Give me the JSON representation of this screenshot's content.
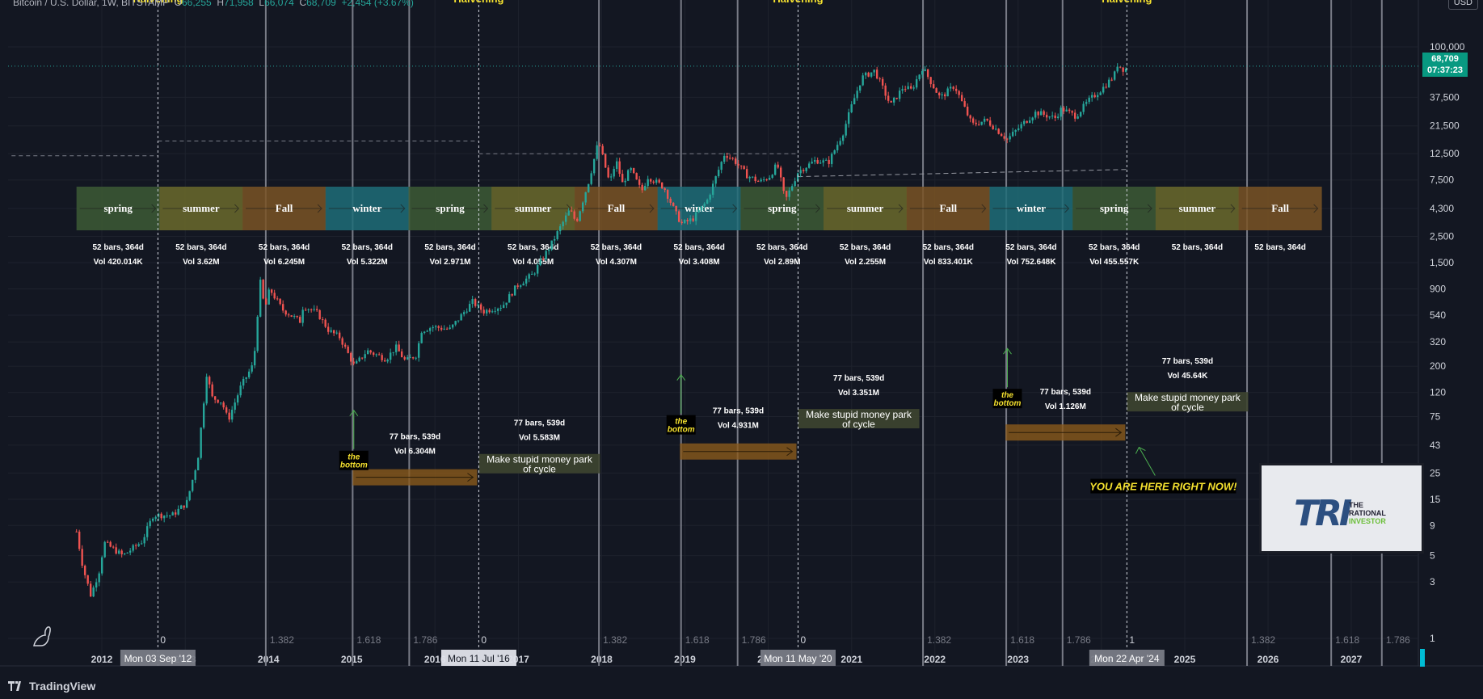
{
  "header": {
    "symbol": "Bitcoin / U.S. Dollar, 1W, BITSTAMP",
    "label_o": "O",
    "value_o": "66,255",
    "label_h": "H",
    "value_h": "71,958",
    "label_l": "L",
    "value_l": "66,074",
    "label_c": "C",
    "value_c": "68,709",
    "change": "+2,454 (+3.67%)"
  },
  "currency_button": "USD",
  "last_price": {
    "price": "68,709",
    "countdown": "07:37:23"
  },
  "footer": {
    "brand": "TradingView"
  },
  "watermark": {
    "mark": "TRI",
    "line1": "THE",
    "line2": "RATIONAL",
    "line3": "INVESTOR"
  },
  "colors": {
    "background": "#131722",
    "up": "#26a69a",
    "down": "#ef5350",
    "spring": "#3d5b35",
    "summer": "#6b6a2c",
    "fall": "#7a5424",
    "winter": "#1f6d78",
    "accumulation": "#8a5a1c",
    "money": "#3e4530",
    "annotation_yellow": "#f5e12f",
    "arrow_green": "#4caf50"
  },
  "chart_data": {
    "type": "candlestick",
    "title": "",
    "y_scale": "log",
    "y_axis_ticks": [
      "100,000",
      "37,500",
      "21,500",
      "12,500",
      "7,500",
      "4,300",
      "2,500",
      "1,500",
      "900",
      "540",
      "320",
      "200",
      "120",
      "75",
      "43",
      "25",
      "15",
      "9",
      "5",
      "3",
      "1"
    ],
    "x_axis_ticks": [
      "2012",
      "2013",
      "2014",
      "2015",
      "2016",
      "2017",
      "2018",
      "2019",
      "2020",
      "2021",
      "2022",
      "2023",
      "2024",
      "2025",
      "2026",
      "2027"
    ],
    "vertical_line_markers": [
      {
        "label": "Mon 03 Sep '12",
        "sublabel": "0",
        "caption": "Halvening",
        "dashed": true,
        "date": "2012-09-03"
      },
      {
        "label": "Mon 11 Jul '16",
        "sublabel": "0",
        "caption": "Halvening",
        "dashed": true,
        "date": "2016-07-11"
      },
      {
        "label": "Mon 11 May '20",
        "sublabel": "0",
        "caption": "Halvening",
        "dashed": true,
        "date": "2020-05-11"
      },
      {
        "label": "Mon 22 Apr '24",
        "sublabel": "1",
        "caption": "Halvening",
        "dashed": true,
        "date": "2024-04-22"
      }
    ],
    "fib_time_lines": [
      {
        "label": "1.382",
        "date": "2013-12-20"
      },
      {
        "label": "1.618",
        "date": "2015-01-05"
      },
      {
        "label": "1.786",
        "date": "2015-09-10"
      },
      {
        "label": "1.382",
        "date": "2017-12-20"
      },
      {
        "label": "1.618",
        "date": "2018-12-15"
      },
      {
        "label": "1.786",
        "date": "2019-08-20"
      },
      {
        "label": "1.382",
        "date": "2021-11-10"
      },
      {
        "label": "1.618",
        "date": "2022-11-10"
      },
      {
        "label": "1.786",
        "date": "2023-07-15"
      },
      {
        "label": "1.382",
        "date": "2025-10-01"
      },
      {
        "label": "1.618",
        "date": "2026-10-05"
      },
      {
        "label": "1.786",
        "date": "2027-05-15"
      }
    ],
    "seasons": [
      {
        "name": "spring",
        "stats": "52 bars, 364d",
        "vol": "Vol 420.014K",
        "start": "2011-09-12"
      },
      {
        "name": "summer",
        "stats": "52 bars, 364d",
        "vol": "Vol 3.62M",
        "start": "2012-09-10"
      },
      {
        "name": "Fall",
        "stats": "52 bars, 364d",
        "vol": "Vol 6.245M",
        "start": "2013-09-09"
      },
      {
        "name": "winter",
        "stats": "52 bars, 364d",
        "vol": "Vol 5.322M",
        "start": "2014-09-08"
      },
      {
        "name": "spring",
        "stats": "52 bars, 364d",
        "vol": "Vol 2.971M",
        "start": "2015-09-07"
      },
      {
        "name": "summer",
        "stats": "52 bars, 364d",
        "vol": "Vol 4.055M",
        "start": "2016-09-05"
      },
      {
        "name": "Fall",
        "stats": "52 bars, 364d",
        "vol": "Vol 4.307M",
        "start": "2017-09-04"
      },
      {
        "name": "winter",
        "stats": "52 bars, 364d",
        "vol": "Vol 3.408M",
        "start": "2018-09-03"
      },
      {
        "name": "spring",
        "stats": "52 bars, 364d",
        "vol": "Vol 2.89M",
        "start": "2019-09-02"
      },
      {
        "name": "summer",
        "stats": "52 bars, 364d",
        "vol": "Vol 2.255M",
        "start": "2020-08-31"
      },
      {
        "name": "Fall",
        "stats": "52 bars, 364d",
        "vol": "Vol 833.401K",
        "start": "2021-08-30"
      },
      {
        "name": "winter",
        "stats": "52 bars, 364d",
        "vol": "Vol 752.648K",
        "start": "2022-08-29"
      },
      {
        "name": "spring",
        "stats": "52 bars, 364d",
        "vol": "Vol 455.557K",
        "start": "2023-08-28"
      },
      {
        "name": "summer",
        "stats": "52 bars, 364d",
        "vol": "",
        "start": "2024-08-26"
      },
      {
        "name": "Fall",
        "stats": "52 bars, 364d",
        "vol": "",
        "start": "2025-08-25"
      }
    ],
    "cycle_boxes": [
      {
        "kind": "accumulation",
        "start": "2015-01-05",
        "end": "2016-07-04",
        "price": 23,
        "stats": "77 bars, 539d",
        "vol": "Vol 6.304M"
      },
      {
        "kind": "money",
        "label": "Make stupid money park of cycle",
        "start": "2016-07-11",
        "end": "2017-12-25",
        "price": 30,
        "stats": "77 bars, 539d",
        "vol": "Vol 5.583M"
      },
      {
        "kind": "accumulation",
        "start": "2018-12-10",
        "end": "2020-05-04",
        "price": 38,
        "stats": "77 bars, 539d",
        "vol": "Vol 4.931M"
      },
      {
        "kind": "money",
        "label": "Make stupid money park of cycle",
        "start": "2020-05-11",
        "end": "2021-10-25",
        "price": 72,
        "stats": "77 bars, 539d",
        "vol": "Vol 3.351M"
      },
      {
        "kind": "accumulation",
        "start": "2022-11-07",
        "end": "2024-04-15",
        "price": 55,
        "stats": "77 bars, 539d",
        "vol": "Vol 1.126M"
      },
      {
        "kind": "money",
        "label": "Make stupid money park of cycle",
        "start": "2024-04-22",
        "end": "2025-10-06",
        "price": 100,
        "stats": "77 bars, 539d",
        "vol": "Vol 45.64K"
      }
    ],
    "bottom_labels": [
      {
        "text": "the bottom",
        "date": "2015-01-10",
        "price": 30
      },
      {
        "text": "the bottom",
        "date": "2018-12-15",
        "price": 60
      },
      {
        "text": "the bottom",
        "date": "2022-11-15",
        "price": 100
      }
    ],
    "callout": {
      "text": "YOU ARE HERE RIGHT NOW!",
      "date": "2024-04-22",
      "price": 20
    },
    "price_path": [
      [
        "2011-09-12",
        8
      ],
      [
        "2011-10-10",
        4
      ],
      [
        "2011-11-14",
        2.3
      ],
      [
        "2011-12-26",
        4
      ],
      [
        "2012-01-09",
        6.5
      ],
      [
        "2012-04-02",
        5
      ],
      [
        "2012-06-25",
        6.6
      ],
      [
        "2012-08-13",
        11
      ],
      [
        "2012-11-05",
        11
      ],
      [
        "2013-01-07",
        14
      ],
      [
        "2013-02-25",
        33
      ],
      [
        "2013-04-08",
        200
      ],
      [
        "2013-04-22",
        110
      ],
      [
        "2013-06-10",
        100
      ],
      [
        "2013-07-08",
        70
      ],
      [
        "2013-09-02",
        135
      ],
      [
        "2013-10-28",
        210
      ],
      [
        "2013-11-25",
        1050
      ],
      [
        "2013-12-16",
        600
      ],
      [
        "2014-01-06",
        900
      ],
      [
        "2014-03-03",
        600
      ],
      [
        "2014-05-19",
        480
      ],
      [
        "2014-06-02",
        650
      ],
      [
        "2014-08-04",
        560
      ],
      [
        "2014-09-22",
        400
      ],
      [
        "2014-11-10",
        350
      ],
      [
        "2015-01-12",
        200
      ],
      [
        "2015-03-09",
        270
      ],
      [
        "2015-06-01",
        230
      ],
      [
        "2015-07-13",
        290
      ],
      [
        "2015-08-24",
        220
      ],
      [
        "2015-10-12",
        250
      ],
      [
        "2015-11-02",
        400
      ],
      [
        "2015-12-21",
        430
      ],
      [
        "2016-03-07",
        410
      ],
      [
        "2016-06-13",
        700
      ],
      [
        "2016-08-01",
        580
      ],
      [
        "2016-10-24",
        650
      ],
      [
        "2016-12-26",
        960
      ],
      [
        "2017-03-06",
        1200
      ],
      [
        "2017-05-22",
        2100
      ],
      [
        "2017-08-14",
        4200
      ],
      [
        "2017-09-11",
        3300
      ],
      [
        "2017-11-06",
        7400
      ],
      [
        "2017-12-18",
        16000
      ],
      [
        "2018-02-05",
        7000
      ],
      [
        "2018-03-05",
        11000
      ],
      [
        "2018-04-02",
        7000
      ],
      [
        "2018-05-07",
        9300
      ],
      [
        "2018-06-25",
        6000
      ],
      [
        "2018-07-23",
        8000
      ],
      [
        "2018-10-01",
        6500
      ],
      [
        "2018-11-19",
        4000
      ],
      [
        "2018-12-17",
        3200
      ],
      [
        "2019-02-04",
        3500
      ],
      [
        "2019-04-08",
        5000
      ],
      [
        "2019-06-24",
        12500
      ],
      [
        "2019-08-05",
        11000
      ],
      [
        "2019-09-30",
        8200
      ],
      [
        "2019-11-25",
        7200
      ],
      [
        "2020-01-06",
        8000
      ],
      [
        "2020-02-10",
        10200
      ],
      [
        "2020-03-16",
        5000
      ],
      [
        "2020-05-11",
        8800
      ],
      [
        "2020-07-27",
        11000
      ],
      [
        "2020-09-21",
        10500
      ],
      [
        "2020-11-23",
        18500
      ],
      [
        "2021-01-04",
        33000
      ],
      [
        "2021-02-15",
        55000
      ],
      [
        "2021-04-12",
        63000
      ],
      [
        "2021-06-21",
        32000
      ],
      [
        "2021-08-16",
        46000
      ],
      [
        "2021-09-20",
        43000
      ],
      [
        "2021-11-08",
        67000
      ],
      [
        "2022-01-24",
        37000
      ],
      [
        "2022-03-28",
        47000
      ],
      [
        "2022-06-13",
        22000
      ],
      [
        "2022-08-15",
        24000
      ],
      [
        "2022-11-14",
        16500
      ],
      [
        "2023-01-23",
        22500
      ],
      [
        "2023-03-20",
        28000
      ],
      [
        "2023-06-12",
        25000
      ],
      [
        "2023-07-10",
        30000
      ],
      [
        "2023-09-11",
        26000
      ],
      [
        "2023-11-06",
        35000
      ],
      [
        "2024-01-08",
        45000
      ],
      [
        "2024-02-26",
        57000
      ],
      [
        "2024-03-11",
        71000
      ],
      [
        "2024-04-15",
        63000
      ],
      [
        "2024-04-22",
        68709
      ]
    ],
    "horizontal_lines": [
      {
        "price": 12000,
        "from": "2010-12-01",
        "to": "2012-09-03",
        "style": "dashed"
      },
      {
        "price": 16000,
        "from": "2012-09-03",
        "to": "2016-07-11",
        "style": "dashed"
      },
      {
        "price": 12500,
        "from": "2016-07-11",
        "to": "2020-05-11",
        "style": "dashed"
      }
    ],
    "trend_line": {
      "from": [
        "2020-05-11",
        8000
      ],
      "to": [
        "2024-04-22",
        9200
      ]
    },
    "current_price_line": 68709
  }
}
